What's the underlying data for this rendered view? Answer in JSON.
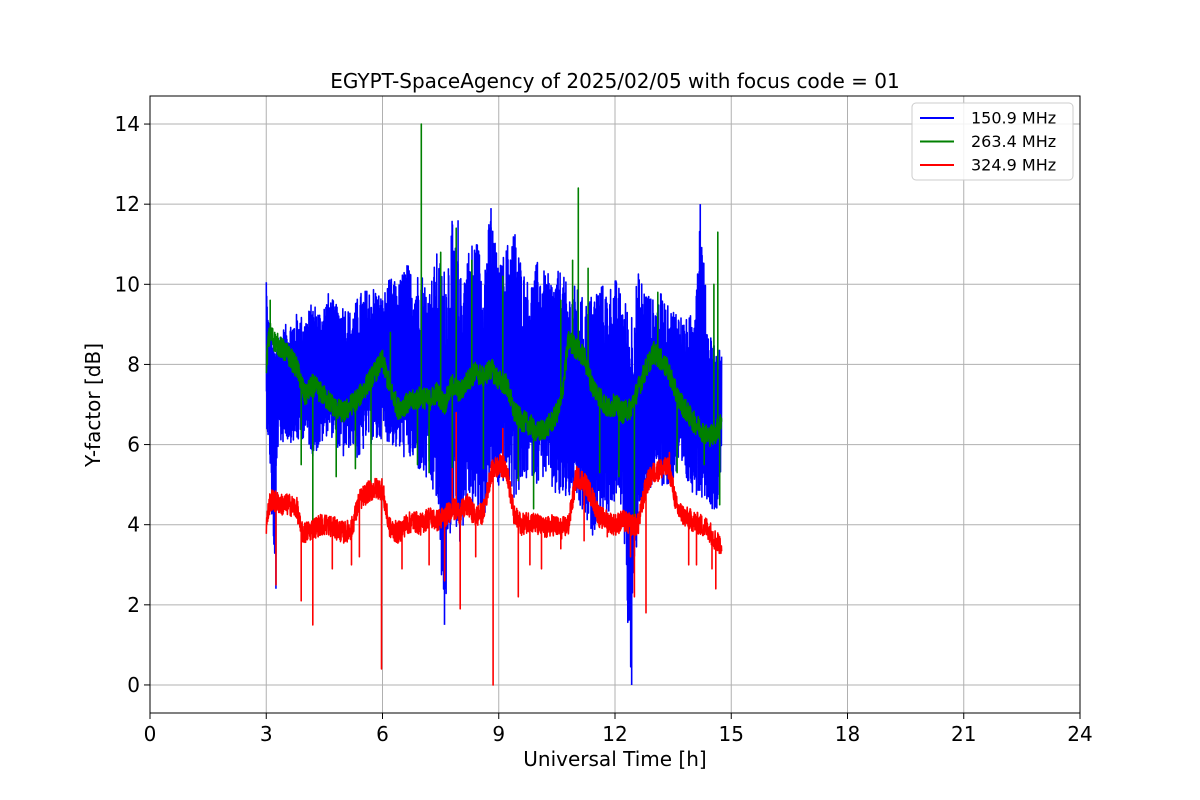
{
  "chart_data": {
    "type": "line",
    "title": "EGYPT-SpaceAgency of 2025/02/05 with focus code = 01",
    "xlabel": "Universal Time [h]",
    "ylabel": "Y-factor [dB]",
    "xlim": [
      0,
      24
    ],
    "ylim": [
      -0.7,
      14.7
    ],
    "xticks": [
      0,
      3,
      6,
      9,
      12,
      15,
      18,
      21,
      24
    ],
    "yticks": [
      0,
      2,
      4,
      6,
      8,
      10,
      12,
      14
    ],
    "grid": true,
    "legend_position": "top-right",
    "series": [
      {
        "name": "150.9 MHz",
        "color": "#0000ff",
        "x": [
          3.0,
          3.03,
          3.1,
          3.2,
          3.3,
          3.5,
          3.8,
          4.0,
          4.2,
          4.4,
          4.6,
          4.8,
          5.0,
          5.2,
          5.4,
          5.6,
          5.8,
          6.0,
          6.2,
          6.4,
          6.6,
          6.8,
          7.0,
          7.2,
          7.4,
          7.6,
          7.8,
          8.0,
          8.2,
          8.4,
          8.6,
          8.8,
          9.0,
          9.2,
          9.4,
          9.6,
          9.8,
          10.0,
          10.2,
          10.4,
          10.6,
          10.8,
          11.0,
          11.2,
          11.4,
          11.6,
          11.8,
          12.0,
          12.2,
          12.4,
          12.6,
          12.8,
          13.0,
          13.2,
          13.4,
          13.6,
          13.8,
          14.0,
          14.2,
          14.4,
          14.6,
          14.75
        ],
        "low": [
          6.5,
          6.3,
          5.4,
          2.4,
          5.9,
          6.1,
          6.0,
          6.2,
          5.7,
          5.9,
          6.3,
          6.0,
          5.6,
          6.0,
          5.5,
          6.1,
          5.9,
          6.2,
          6.0,
          5.8,
          5.6,
          5.5,
          5.2,
          4.9,
          4.5,
          1.5,
          4.2,
          3.5,
          4.6,
          4.2,
          4.0,
          5.0,
          4.8,
          5.2,
          4.6,
          4.8,
          5.3,
          5.0,
          5.2,
          4.7,
          4.5,
          4.6,
          4.4,
          4.1,
          3.6,
          4.3,
          4.2,
          4.5,
          4.4,
          0.0,
          4.3,
          4.5,
          4.9,
          5.0,
          4.8,
          5.2,
          5.0,
          4.8,
          4.7,
          4.6,
          4.2,
          5.4
        ],
        "high": [
          10.5,
          9.5,
          9.0,
          8.5,
          8.8,
          9.0,
          9.3,
          9.2,
          9.6,
          9.4,
          9.8,
          9.5,
          9.6,
          9.3,
          9.8,
          9.9,
          10.0,
          9.7,
          10.2,
          10.0,
          10.6,
          10.3,
          10.4,
          9.9,
          10.8,
          10.5,
          11.6,
          10.2,
          10.9,
          11.3,
          10.6,
          11.9,
          10.4,
          11.0,
          11.5,
          10.5,
          10.0,
          10.6,
          10.3,
          10.2,
          10.4,
          9.9,
          10.0,
          9.6,
          9.8,
          10.1,
          9.9,
          10.2,
          9.7,
          9.5,
          10.3,
          10.0,
          9.6,
          9.8,
          9.4,
          9.5,
          9.1,
          9.3,
          12.0,
          9.0,
          8.6,
          8.3
        ]
      },
      {
        "name": "263.4 MHz",
        "color": "#008000",
        "x": [
          3.0,
          3.05,
          3.1,
          3.2,
          3.4,
          3.6,
          3.8,
          4.0,
          4.2,
          4.4,
          4.6,
          4.8,
          5.0,
          5.2,
          5.4,
          5.6,
          5.8,
          6.0,
          6.2,
          6.4,
          6.6,
          6.8,
          7.0,
          7.2,
          7.4,
          7.6,
          7.8,
          8.0,
          8.2,
          8.4,
          8.6,
          8.8,
          9.0,
          9.2,
          9.4,
          9.6,
          9.8,
          10.0,
          10.2,
          10.4,
          10.6,
          10.8,
          11.0,
          11.2,
          11.4,
          11.6,
          11.8,
          12.0,
          12.2,
          12.4,
          12.6,
          12.8,
          13.0,
          13.2,
          13.4,
          13.6,
          13.8,
          14.0,
          14.2,
          14.4,
          14.6,
          14.75
        ],
        "y": [
          8.0,
          8.5,
          8.8,
          8.6,
          8.4,
          8.2,
          7.9,
          7.2,
          7.5,
          7.3,
          7.1,
          6.9,
          6.8,
          7.0,
          7.2,
          7.5,
          7.8,
          8.1,
          7.4,
          6.9,
          7.0,
          7.1,
          7.2,
          7.1,
          7.3,
          7.0,
          7.5,
          7.3,
          7.6,
          7.8,
          7.7,
          7.9,
          7.6,
          7.5,
          6.8,
          6.6,
          6.5,
          6.3,
          6.4,
          6.6,
          7.0,
          8.6,
          8.4,
          8.2,
          7.5,
          7.2,
          6.9,
          7.0,
          6.8,
          6.9,
          7.4,
          7.9,
          8.3,
          8.1,
          7.8,
          7.2,
          6.9,
          6.6,
          6.4,
          6.2,
          6.3,
          6.6
        ],
        "spikes": [
          [
            3.1,
            9.6
          ],
          [
            3.9,
            5.5
          ],
          [
            4.2,
            4.0
          ],
          [
            4.8,
            5.2
          ],
          [
            5.3,
            5.4
          ],
          [
            5.7,
            5.0
          ],
          [
            6.2,
            8.8
          ],
          [
            6.9,
            5.5
          ],
          [
            7.0,
            14.0
          ],
          [
            7.2,
            5.3
          ],
          [
            7.5,
            10.8
          ],
          [
            7.8,
            5.0
          ],
          [
            7.9,
            11.4
          ],
          [
            8.3,
            10.6
          ],
          [
            8.6,
            5.4
          ],
          [
            9.1,
            10.2
          ],
          [
            9.5,
            5.1
          ],
          [
            9.9,
            4.4
          ],
          [
            10.6,
            9.6
          ],
          [
            10.9,
            10.6
          ],
          [
            11.05,
            12.4
          ],
          [
            11.3,
            10.4
          ],
          [
            11.6,
            5.3
          ],
          [
            12.1,
            5.2
          ],
          [
            12.5,
            4.0
          ],
          [
            13.1,
            9.8
          ],
          [
            13.6,
            5.3
          ],
          [
            14.3,
            5.5
          ],
          [
            14.55,
            10.0
          ],
          [
            14.65,
            11.3
          ],
          [
            14.7,
            4.5
          ]
        ]
      },
      {
        "name": "324.9 MHz",
        "color": "#ff0000",
        "x": [
          3.0,
          3.05,
          3.1,
          3.2,
          3.4,
          3.6,
          3.8,
          3.9,
          4.0,
          4.2,
          4.4,
          4.6,
          4.8,
          5.0,
          5.2,
          5.4,
          5.6,
          5.8,
          6.0,
          6.1,
          6.2,
          6.4,
          6.6,
          6.8,
          7.0,
          7.2,
          7.4,
          7.6,
          7.8,
          8.0,
          8.2,
          8.4,
          8.6,
          8.8,
          9.0,
          9.2,
          9.4,
          9.6,
          9.8,
          10.0,
          10.2,
          10.4,
          10.6,
          10.8,
          11.0,
          11.2,
          11.4,
          11.6,
          11.8,
          12.0,
          12.2,
          12.4,
          12.6,
          12.8,
          13.0,
          13.2,
          13.4,
          13.6,
          13.8,
          14.0,
          14.2,
          14.4,
          14.6,
          14.75
        ],
        "y": [
          4.0,
          4.3,
          4.6,
          4.6,
          4.5,
          4.5,
          4.4,
          3.8,
          3.8,
          3.9,
          4.0,
          4.0,
          3.9,
          3.8,
          3.9,
          4.6,
          4.8,
          4.9,
          4.9,
          4.3,
          3.9,
          3.8,
          4.0,
          4.1,
          4.0,
          4.2,
          4.1,
          4.2,
          4.4,
          4.3,
          4.5,
          4.2,
          4.3,
          5.3,
          5.5,
          5.4,
          4.2,
          4.0,
          4.1,
          4.0,
          3.9,
          4.0,
          3.9,
          4.0,
          5.2,
          5.1,
          4.7,
          4.2,
          4.1,
          4.0,
          4.1,
          4.0,
          4.0,
          5.0,
          5.3,
          5.4,
          5.4,
          4.4,
          4.2,
          4.1,
          4.0,
          3.9,
          3.6,
          3.5
        ],
        "spikes": [
          [
            3.25,
            2.5
          ],
          [
            3.9,
            2.1
          ],
          [
            4.2,
            1.5
          ],
          [
            4.7,
            2.9
          ],
          [
            5.2,
            3.0
          ],
          [
            5.4,
            3.2
          ],
          [
            5.97,
            0.4
          ],
          [
            6.5,
            2.9
          ],
          [
            7.2,
            3.0
          ],
          [
            7.6,
            2.6
          ],
          [
            7.8,
            5.4
          ],
          [
            7.9,
            6.8
          ],
          [
            8.0,
            1.9
          ],
          [
            8.4,
            3.2
          ],
          [
            8.85,
            0.0
          ],
          [
            9.1,
            6.4
          ],
          [
            9.5,
            2.2
          ],
          [
            9.8,
            3.0
          ],
          [
            10.1,
            2.9
          ],
          [
            10.6,
            3.4
          ],
          [
            11.2,
            3.6
          ],
          [
            11.8,
            3.7
          ],
          [
            12.4,
            3.2
          ],
          [
            12.5,
            2.2
          ],
          [
            12.8,
            1.8
          ],
          [
            13.4,
            5.8
          ],
          [
            13.9,
            3.0
          ],
          [
            14.1,
            3.0
          ],
          [
            14.5,
            2.9
          ],
          [
            14.6,
            2.4
          ],
          [
            14.7,
            3.7
          ]
        ]
      }
    ]
  }
}
